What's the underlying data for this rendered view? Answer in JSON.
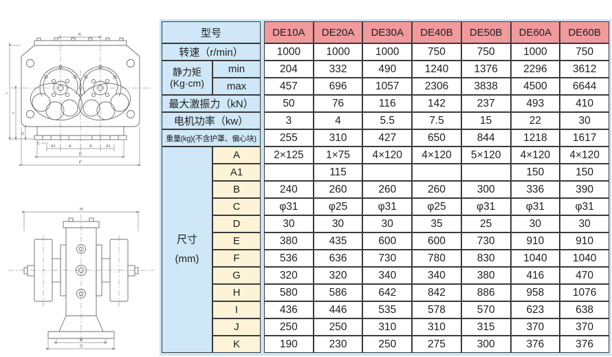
{
  "colors": {
    "header_pink": "#f09a9c",
    "label_blue": "#cfe7f6",
    "dim_cream": "#fdf4d8",
    "table_bg": "#c9e5f4",
    "border": "#3a3a3a"
  },
  "table": {
    "corner_label": "型号",
    "models": [
      "DE10A",
      "DE20A",
      "DE30A",
      "DE40B",
      "DE50B",
      "DE60A",
      "DE60B"
    ],
    "param_rows": [
      {
        "kind": "simple",
        "label": "转速（r/min）",
        "values": [
          "1000",
          "1000",
          "1000",
          "750",
          "750",
          "1000",
          "750"
        ]
      },
      {
        "kind": "minmax_first",
        "group_label_1": "静力矩",
        "group_label_2": "(Kg·cm)",
        "sub_label": "min",
        "values": [
          "204",
          "332",
          "490",
          "1240",
          "1376",
          "2296",
          "3612"
        ]
      },
      {
        "kind": "minmax_second",
        "sub_label": "max",
        "values": [
          "457",
          "696",
          "1057",
          "2306",
          "3838",
          "4500",
          "6644"
        ]
      },
      {
        "kind": "simple",
        "label": "最大激振力（kN）",
        "values": [
          "50",
          "76",
          "116",
          "142",
          "237",
          "493",
          "410"
        ]
      },
      {
        "kind": "simple",
        "label": "电机功率（kw）",
        "values": [
          "3",
          "4",
          "5.5",
          "7.5",
          "15",
          "22",
          "30"
        ]
      },
      {
        "kind": "simple_small",
        "label": "重量(kg)(不含护罩、偏心块)",
        "values": [
          "255",
          "310",
          "427",
          "650",
          "844",
          "1218",
          "1617"
        ]
      }
    ],
    "dims": {
      "header_line1": "尺寸",
      "header_line2": "(mm)",
      "rows": [
        {
          "letter": "A",
          "values": [
            "2×125",
            "1×75",
            "4×120",
            "4×120",
            "5×120",
            "4×120",
            "4×120"
          ]
        },
        {
          "letter": "A1",
          "values": [
            "",
            "115",
            "",
            "",
            "",
            "150",
            "150"
          ]
        },
        {
          "letter": "B",
          "values": [
            "240",
            "260",
            "260",
            "260",
            "300",
            "336",
            "390"
          ]
        },
        {
          "letter": "C",
          "values": [
            "φ31",
            "φ25",
            "φ31",
            "φ25",
            "φ31",
            "φ31",
            "φ31"
          ]
        },
        {
          "letter": "D",
          "values": [
            "30",
            "30",
            "30",
            "35",
            "25",
            "30",
            "30"
          ]
        },
        {
          "letter": "E",
          "values": [
            "380",
            "435",
            "600",
            "600",
            "730",
            "910",
            "910"
          ]
        },
        {
          "letter": "F",
          "values": [
            "536",
            "636",
            "730",
            "780",
            "830",
            "1040",
            "1040"
          ]
        },
        {
          "letter": "G",
          "values": [
            "320",
            "320",
            "340",
            "340",
            "380",
            "416",
            "470"
          ]
        },
        {
          "letter": "H",
          "values": [
            "580",
            "586",
            "642",
            "842",
            "886",
            "958",
            "1076"
          ]
        },
        {
          "letter": "I",
          "values": [
            "436",
            "446",
            "535",
            "578",
            "570",
            "623",
            "638"
          ]
        },
        {
          "letter": "J",
          "values": [
            "250",
            "250",
            "310",
            "310",
            "315",
            "370",
            "370"
          ]
        },
        {
          "letter": "K",
          "values": [
            "190",
            "230",
            "250",
            "275",
            "300",
            "376",
            "376"
          ]
        }
      ]
    }
  },
  "drawings": {
    "front_view": {
      "labels": {
        "K": "K",
        "A1": "A1",
        "A": "A",
        "E": "E",
        "F": "F",
        "C": "C",
        "D": "D",
        "I": "I",
        "J": "J"
      }
    },
    "side_view": {
      "labels": {
        "H": "H",
        "B": "B",
        "G": "G"
      }
    }
  }
}
